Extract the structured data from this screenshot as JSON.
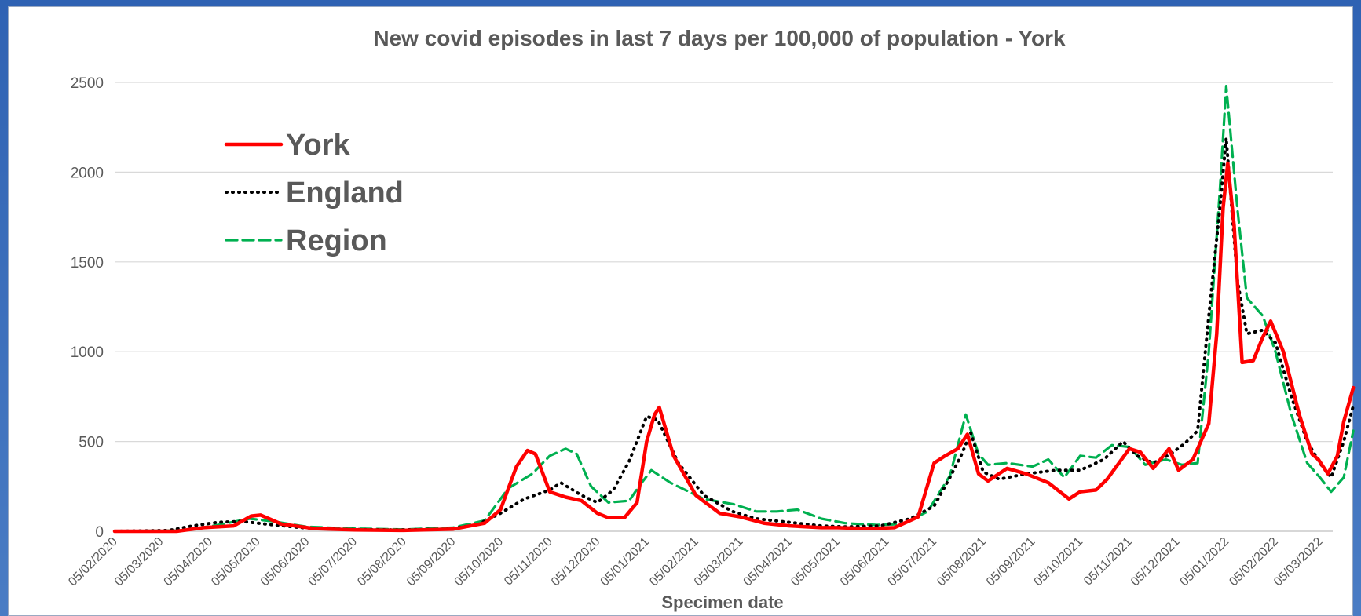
{
  "chart_data": {
    "type": "line",
    "title": "New covid episodes in last 7 days per 100,000 of population - York",
    "xlabel": "Specimen date",
    "ylabel": "",
    "ylim": [
      0,
      2500
    ],
    "yticks": [
      "0",
      "500",
      "1000",
      "1500",
      "2000",
      "2500"
    ],
    "x_range": [
      "2020-02-05",
      "2022-03-12"
    ],
    "categories": [
      "05/02/2020",
      "05/03/2020",
      "05/04/2020",
      "05/05/2020",
      "05/06/2020",
      "05/07/2020",
      "05/08/2020",
      "05/09/2020",
      "05/10/2020",
      "05/11/2020",
      "05/12/2020",
      "05/01/2021",
      "05/02/2021",
      "05/03/2021",
      "05/04/2021",
      "05/05/2021",
      "05/06/2021",
      "05/07/2021",
      "05/08/2021",
      "05/09/2021",
      "05/10/2021",
      "05/11/2021",
      "05/12/2021",
      "05/01/2022",
      "05/02/2022",
      "05/03/2022"
    ],
    "grid": true,
    "legend_placement": "top-left",
    "series": [
      {
        "name": "York",
        "color": "#ff0000",
        "style": "solid",
        "points": [
          [
            "2020-02-05",
            0
          ],
          [
            "2020-03-15",
            0
          ],
          [
            "2020-04-01",
            20
          ],
          [
            "2020-04-20",
            30
          ],
          [
            "2020-05-01",
            85
          ],
          [
            "2020-05-07",
            90
          ],
          [
            "2020-05-20",
            40
          ],
          [
            "2020-06-10",
            15
          ],
          [
            "2020-07-05",
            8
          ],
          [
            "2020-08-05",
            5
          ],
          [
            "2020-09-05",
            12
          ],
          [
            "2020-09-25",
            45
          ],
          [
            "2020-10-05",
            120
          ],
          [
            "2020-10-15",
            360
          ],
          [
            "2020-10-22",
            450
          ],
          [
            "2020-10-27",
            430
          ],
          [
            "2020-11-05",
            220
          ],
          [
            "2020-11-15",
            190
          ],
          [
            "2020-11-25",
            170
          ],
          [
            "2020-12-05",
            100
          ],
          [
            "2020-12-12",
            75
          ],
          [
            "2020-12-22",
            75
          ],
          [
            "2020-12-30",
            160
          ],
          [
            "2021-01-05",
            500
          ],
          [
            "2021-01-10",
            650
          ],
          [
            "2021-01-13",
            690
          ],
          [
            "2021-01-22",
            420
          ],
          [
            "2021-02-05",
            200
          ],
          [
            "2021-02-20",
            100
          ],
          [
            "2021-03-05",
            80
          ],
          [
            "2021-03-20",
            45
          ],
          [
            "2021-04-05",
            30
          ],
          [
            "2021-04-25",
            20
          ],
          [
            "2021-05-05",
            20
          ],
          [
            "2021-05-25",
            15
          ],
          [
            "2021-06-10",
            20
          ],
          [
            "2021-06-25",
            80
          ],
          [
            "2021-07-05",
            380
          ],
          [
            "2021-07-12",
            420
          ],
          [
            "2021-07-20",
            460
          ],
          [
            "2021-07-26",
            540
          ],
          [
            "2021-08-02",
            320
          ],
          [
            "2021-08-08",
            280
          ],
          [
            "2021-08-20",
            350
          ],
          [
            "2021-09-01",
            320
          ],
          [
            "2021-09-15",
            270
          ],
          [
            "2021-09-28",
            180
          ],
          [
            "2021-10-05",
            220
          ],
          [
            "2021-10-15",
            230
          ],
          [
            "2021-10-22",
            290
          ],
          [
            "2021-11-05",
            460
          ],
          [
            "2021-11-12",
            440
          ],
          [
            "2021-11-20",
            350
          ],
          [
            "2021-11-30",
            460
          ],
          [
            "2021-12-06",
            340
          ],
          [
            "2021-12-15",
            400
          ],
          [
            "2021-12-25",
            600
          ],
          [
            "2021-12-30",
            1100
          ],
          [
            "2022-01-03",
            1800
          ],
          [
            "2022-01-06",
            2050
          ],
          [
            "2022-01-10",
            1700
          ],
          [
            "2022-01-15",
            940
          ],
          [
            "2022-01-22",
            950
          ],
          [
            "2022-01-28",
            1080
          ],
          [
            "2022-02-02",
            1170
          ],
          [
            "2022-02-10",
            1000
          ],
          [
            "2022-02-20",
            650
          ],
          [
            "2022-02-28",
            430
          ],
          [
            "2022-03-04",
            400
          ],
          [
            "2022-03-10",
            320
          ],
          [
            "2022-03-16",
            420
          ],
          [
            "2022-03-20",
            610
          ],
          [
            "2022-03-26",
            800
          ]
        ]
      },
      {
        "name": "England",
        "color": "#000000",
        "style": "dotted",
        "points": [
          [
            "2020-02-05",
            0
          ],
          [
            "2020-03-10",
            5
          ],
          [
            "2020-03-25",
            30
          ],
          [
            "2020-04-10",
            50
          ],
          [
            "2020-04-25",
            55
          ],
          [
            "2020-05-10",
            40
          ],
          [
            "2020-06-01",
            20
          ],
          [
            "2020-07-01",
            10
          ],
          [
            "2020-08-01",
            8
          ],
          [
            "2020-09-01",
            12
          ],
          [
            "2020-09-20",
            35
          ],
          [
            "2020-10-05",
            100
          ],
          [
            "2020-10-20",
            180
          ],
          [
            "2020-11-05",
            230
          ],
          [
            "2020-11-12",
            270
          ],
          [
            "2020-11-25",
            200
          ],
          [
            "2020-12-05",
            160
          ],
          [
            "2020-12-15",
            230
          ],
          [
            "2020-12-25",
            390
          ],
          [
            "2021-01-05",
            640
          ],
          [
            "2021-01-12",
            620
          ],
          [
            "2021-01-25",
            380
          ],
          [
            "2021-02-10",
            200
          ],
          [
            "2021-02-28",
            110
          ],
          [
            "2021-03-15",
            70
          ],
          [
            "2021-04-05",
            50
          ],
          [
            "2021-04-25",
            30
          ],
          [
            "2021-05-10",
            25
          ],
          [
            "2021-06-01",
            30
          ],
          [
            "2021-06-20",
            70
          ],
          [
            "2021-07-05",
            140
          ],
          [
            "2021-07-15",
            300
          ],
          [
            "2021-07-22",
            420
          ],
          [
            "2021-07-28",
            550
          ],
          [
            "2021-08-05",
            330
          ],
          [
            "2021-08-15",
            290
          ],
          [
            "2021-09-01",
            320
          ],
          [
            "2021-09-20",
            340
          ],
          [
            "2021-10-05",
            340
          ],
          [
            "2021-10-20",
            400
          ],
          [
            "2021-11-01",
            500
          ],
          [
            "2021-11-10",
            420
          ],
          [
            "2021-11-20",
            380
          ],
          [
            "2021-12-01",
            430
          ],
          [
            "2021-12-10",
            490
          ],
          [
            "2021-12-18",
            560
          ],
          [
            "2021-12-25",
            1200
          ],
          [
            "2022-01-01",
            1800
          ],
          [
            "2022-01-05",
            2190
          ],
          [
            "2022-01-12",
            1400
          ],
          [
            "2022-01-18",
            1100
          ],
          [
            "2022-01-28",
            1120
          ],
          [
            "2022-02-05",
            1050
          ],
          [
            "2022-02-15",
            750
          ],
          [
            "2022-02-25",
            500
          ],
          [
            "2022-03-05",
            380
          ],
          [
            "2022-03-12",
            300
          ],
          [
            "2022-03-20",
            500
          ],
          [
            "2022-03-26",
            700
          ]
        ]
      },
      {
        "name": "Region",
        "color": "#00b050",
        "style": "dashed",
        "points": [
          [
            "2020-02-05",
            0
          ],
          [
            "2020-03-20",
            5
          ],
          [
            "2020-04-10",
            35
          ],
          [
            "2020-04-30",
            70
          ],
          [
            "2020-05-15",
            55
          ],
          [
            "2020-06-05",
            25
          ],
          [
            "2020-07-05",
            15
          ],
          [
            "2020-08-05",
            10
          ],
          [
            "2020-09-05",
            20
          ],
          [
            "2020-09-25",
            60
          ],
          [
            "2020-10-10",
            240
          ],
          [
            "2020-10-25",
            320
          ],
          [
            "2020-11-05",
            420
          ],
          [
            "2020-11-15",
            460
          ],
          [
            "2020-11-22",
            430
          ],
          [
            "2020-12-01",
            250
          ],
          [
            "2020-12-12",
            160
          ],
          [
            "2020-12-25",
            170
          ],
          [
            "2021-01-01",
            260
          ],
          [
            "2021-01-08",
            340
          ],
          [
            "2021-01-20",
            270
          ],
          [
            "2021-02-10",
            180
          ],
          [
            "2021-03-01",
            150
          ],
          [
            "2021-03-15",
            110
          ],
          [
            "2021-03-28",
            110
          ],
          [
            "2021-04-10",
            120
          ],
          [
            "2021-04-25",
            70
          ],
          [
            "2021-05-10",
            45
          ],
          [
            "2021-05-30",
            35
          ],
          [
            "2021-06-15",
            40
          ],
          [
            "2021-07-01",
            110
          ],
          [
            "2021-07-15",
            310
          ],
          [
            "2021-07-25",
            650
          ],
          [
            "2021-08-02",
            430
          ],
          [
            "2021-08-08",
            370
          ],
          [
            "2021-08-20",
            380
          ],
          [
            "2021-09-05",
            360
          ],
          [
            "2021-09-15",
            400
          ],
          [
            "2021-09-25",
            300
          ],
          [
            "2021-10-05",
            420
          ],
          [
            "2021-10-15",
            410
          ],
          [
            "2021-10-25",
            480
          ],
          [
            "2021-11-05",
            470
          ],
          [
            "2021-11-15",
            370
          ],
          [
            "2021-11-28",
            400
          ],
          [
            "2021-12-08",
            370
          ],
          [
            "2021-12-18",
            380
          ],
          [
            "2021-12-25",
            1000
          ],
          [
            "2022-01-01",
            1900
          ],
          [
            "2022-01-05",
            2480
          ],
          [
            "2022-01-12",
            1800
          ],
          [
            "2022-01-18",
            1300
          ],
          [
            "2022-01-28",
            1200
          ],
          [
            "2022-02-05",
            1000
          ],
          [
            "2022-02-15",
            650
          ],
          [
            "2022-02-25",
            380
          ],
          [
            "2022-03-05",
            300
          ],
          [
            "2022-03-12",
            220
          ],
          [
            "2022-03-20",
            300
          ],
          [
            "2022-03-26",
            560
          ]
        ]
      }
    ]
  }
}
